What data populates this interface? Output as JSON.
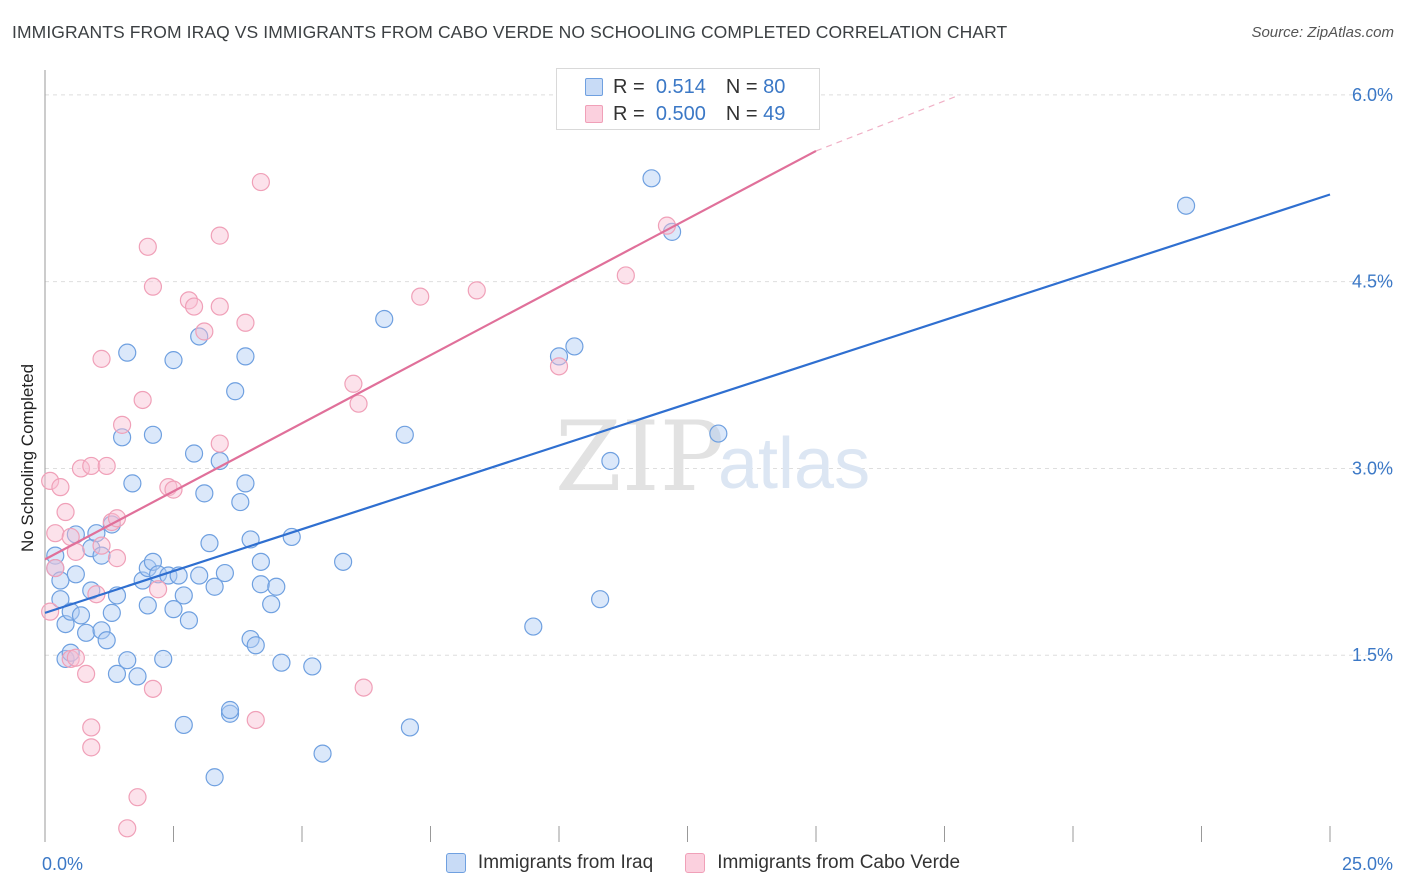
{
  "header": {
    "title": "IMMIGRANTS FROM IRAQ VS IMMIGRANTS FROM CABO VERDE NO SCHOOLING COMPLETED CORRELATION CHART",
    "source": "Source: ZipAtlas.com"
  },
  "legend": {
    "iraq": {
      "r_label": "R =",
      "r_value": "0.514",
      "n_label": "N =",
      "n_value": "80"
    },
    "caboverde": {
      "r_label": "R =",
      "r_value": "0.500",
      "n_label": "N =",
      "n_value": "49"
    }
  },
  "bottom_legend": {
    "iraq": "Immigrants from Iraq",
    "caboverde": "Immigrants from Cabo Verde"
  },
  "watermark": {
    "zip": "ZIP",
    "atlas": "atlas"
  },
  "colors": {
    "iraq": "#6fa0e0",
    "iraq_line": "#2f6fd0",
    "caboverde": "#f0a0b8",
    "caboverde_line": "#e0709a",
    "tick_label": "#3b78c6"
  },
  "chart_data": {
    "type": "scatter",
    "title": "IMMIGRANTS FROM IRAQ VS IMMIGRANTS FROM CABO VERDE NO SCHOOLING COMPLETED CORRELATION CHART",
    "xlabel": "",
    "ylabel": "No Schooling Completed",
    "xlim": [
      0,
      25
    ],
    "ylim": [
      0,
      6.2
    ],
    "x_tick_labels": [
      "0.0%",
      "25.0%"
    ],
    "y_ticks": [
      1.5,
      3.0,
      4.5,
      6.0
    ],
    "y_tick_labels": [
      "1.5%",
      "3.0%",
      "4.5%",
      "6.0%"
    ],
    "grid": true,
    "legend_position": "top-center",
    "series": [
      {
        "name": "Immigrants from Iraq",
        "color": "#6fa0e0",
        "trendline": {
          "x": [
            0,
            25
          ],
          "y": [
            1.84,
            5.2
          ]
        },
        "points": [
          [
            0.2,
            2.3
          ],
          [
            0.2,
            2.2
          ],
          [
            0.3,
            2.1
          ],
          [
            0.3,
            1.95
          ],
          [
            0.4,
            1.75
          ],
          [
            0.4,
            1.47
          ],
          [
            0.5,
            1.85
          ],
          [
            0.5,
            1.52
          ],
          [
            0.6,
            2.15
          ],
          [
            0.6,
            2.47
          ],
          [
            0.7,
            1.82
          ],
          [
            0.8,
            1.68
          ],
          [
            0.9,
            2.36
          ],
          [
            0.9,
            2.02
          ],
          [
            1.0,
            2.48
          ],
          [
            1.1,
            1.7
          ],
          [
            1.1,
            2.3
          ],
          [
            1.2,
            1.62
          ],
          [
            1.3,
            1.84
          ],
          [
            1.3,
            2.55
          ],
          [
            1.4,
            1.35
          ],
          [
            1.4,
            1.98
          ],
          [
            1.5,
            3.25
          ],
          [
            1.6,
            3.93
          ],
          [
            1.6,
            1.46
          ],
          [
            1.7,
            2.88
          ],
          [
            1.8,
            1.33
          ],
          [
            1.9,
            2.1
          ],
          [
            2.0,
            2.2
          ],
          [
            2.0,
            1.9
          ],
          [
            2.1,
            2.25
          ],
          [
            2.1,
            3.27
          ],
          [
            2.2,
            2.15
          ],
          [
            2.3,
            1.47
          ],
          [
            2.4,
            2.14
          ],
          [
            2.5,
            3.87
          ],
          [
            2.5,
            1.87
          ],
          [
            2.6,
            2.14
          ],
          [
            2.7,
            0.94
          ],
          [
            2.7,
            1.98
          ],
          [
            2.8,
            1.78
          ],
          [
            2.9,
            3.12
          ],
          [
            3.0,
            4.06
          ],
          [
            3.0,
            2.14
          ],
          [
            3.1,
            2.8
          ],
          [
            3.2,
            2.4
          ],
          [
            3.3,
            0.52
          ],
          [
            3.3,
            2.05
          ],
          [
            3.4,
            3.06
          ],
          [
            3.5,
            2.16
          ],
          [
            3.6,
            1.03
          ],
          [
            3.7,
            3.62
          ],
          [
            3.8,
            2.73
          ],
          [
            3.9,
            3.9
          ],
          [
            3.9,
            2.88
          ],
          [
            4.0,
            2.43
          ],
          [
            4.0,
            1.63
          ],
          [
            4.1,
            1.58
          ],
          [
            4.2,
            2.07
          ],
          [
            4.2,
            2.25
          ],
          [
            4.4,
            1.91
          ],
          [
            4.5,
            2.05
          ],
          [
            4.6,
            1.44
          ],
          [
            4.8,
            2.45
          ],
          [
            5.2,
            1.41
          ],
          [
            5.4,
            0.71
          ],
          [
            5.8,
            2.25
          ],
          [
            6.6,
            4.2
          ],
          [
            7.0,
            3.27
          ],
          [
            7.1,
            0.92
          ],
          [
            9.5,
            1.73
          ],
          [
            10.0,
            3.9
          ],
          [
            10.3,
            3.98
          ],
          [
            10.8,
            1.95
          ],
          [
            11.0,
            3.06
          ],
          [
            11.8,
            5.33
          ],
          [
            12.2,
            4.9
          ],
          [
            13.1,
            3.28
          ],
          [
            22.2,
            5.11
          ],
          [
            3.6,
            1.06
          ]
        ]
      },
      {
        "name": "Immigrants from Cabo Verde",
        "color": "#f0a0b8",
        "trendline": {
          "x": [
            0,
            15
          ],
          "y": [
            2.27,
            5.55
          ]
        },
        "trendline_dashed": {
          "x": [
            15,
            17.8
          ],
          "y": [
            5.55,
            6.0
          ]
        },
        "points": [
          [
            0.1,
            2.9
          ],
          [
            0.1,
            1.85
          ],
          [
            0.2,
            2.48
          ],
          [
            0.2,
            2.2
          ],
          [
            0.3,
            2.85
          ],
          [
            0.4,
            2.65
          ],
          [
            0.5,
            2.45
          ],
          [
            0.5,
            1.47
          ],
          [
            0.6,
            2.33
          ],
          [
            0.6,
            1.48
          ],
          [
            0.7,
            3.0
          ],
          [
            0.8,
            1.35
          ],
          [
            0.9,
            3.02
          ],
          [
            0.9,
            0.92
          ],
          [
            0.9,
            0.76
          ],
          [
            1.0,
            1.99
          ],
          [
            1.1,
            2.38
          ],
          [
            1.1,
            3.88
          ],
          [
            1.2,
            3.02
          ],
          [
            1.3,
            2.57
          ],
          [
            1.4,
            2.6
          ],
          [
            1.4,
            2.28
          ],
          [
            1.5,
            3.35
          ],
          [
            1.6,
            0.11
          ],
          [
            1.8,
            0.36
          ],
          [
            1.9,
            3.55
          ],
          [
            2.0,
            4.78
          ],
          [
            2.1,
            4.46
          ],
          [
            2.1,
            1.23
          ],
          [
            2.2,
            2.03
          ],
          [
            2.4,
            2.85
          ],
          [
            2.5,
            2.83
          ],
          [
            2.8,
            4.35
          ],
          [
            2.9,
            4.3
          ],
          [
            3.1,
            4.1
          ],
          [
            3.4,
            4.3
          ],
          [
            3.4,
            4.87
          ],
          [
            3.4,
            3.2
          ],
          [
            3.9,
            4.17
          ],
          [
            4.1,
            0.98
          ],
          [
            4.2,
            5.3
          ],
          [
            6.0,
            3.68
          ],
          [
            6.1,
            3.52
          ],
          [
            6.2,
            1.24
          ],
          [
            7.3,
            4.38
          ],
          [
            8.4,
            4.43
          ],
          [
            10.0,
            3.82
          ],
          [
            11.3,
            4.55
          ],
          [
            12.1,
            4.95
          ]
        ]
      }
    ]
  }
}
